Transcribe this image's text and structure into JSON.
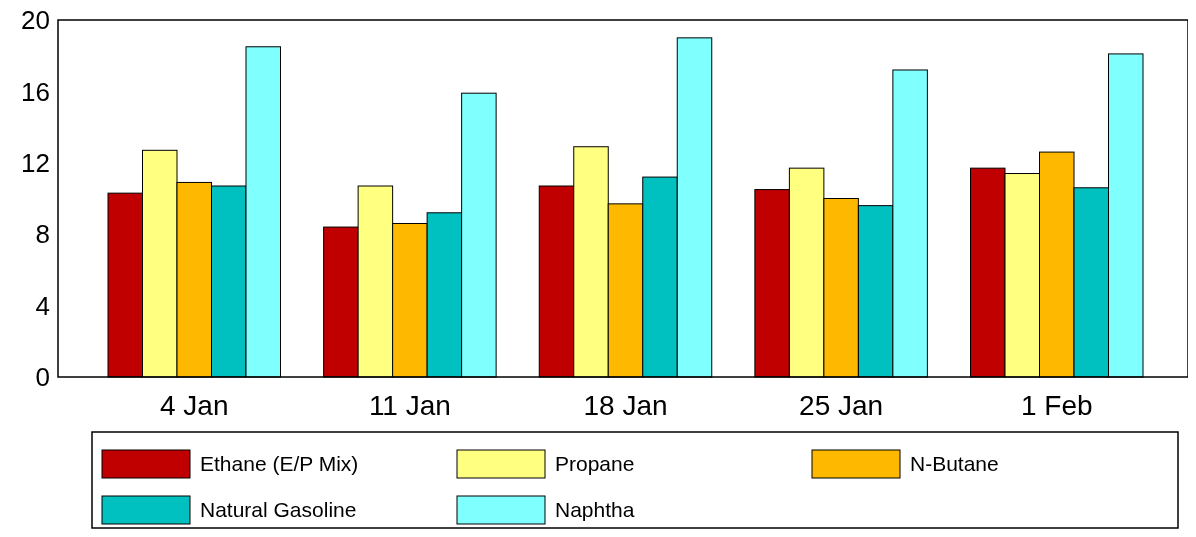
{
  "chart_data": {
    "type": "bar",
    "categories": [
      "4 Jan",
      "11 Jan",
      "18 Jan",
      "25 Jan",
      "1 Feb"
    ],
    "series": [
      {
        "name": "Ethane (E/P Mix)",
        "color": "#c00000",
        "values": [
          10.3,
          8.4,
          10.7,
          10.5,
          11.7
        ]
      },
      {
        "name": "Propane",
        "color": "#ffff80",
        "values": [
          12.7,
          10.7,
          12.9,
          11.7,
          11.4
        ]
      },
      {
        "name": "N-Butane",
        "color": "#ffb800",
        "values": [
          10.9,
          8.6,
          9.7,
          10.0,
          12.6
        ]
      },
      {
        "name": "Natural Gasoline",
        "color": "#00c0c0",
        "values": [
          10.7,
          9.2,
          11.2,
          9.6,
          10.6
        ]
      },
      {
        "name": "Naphtha",
        "color": "#80ffff",
        "values": [
          18.5,
          15.9,
          19.0,
          17.2,
          18.1
        ]
      }
    ],
    "ylim": [
      0,
      20
    ],
    "yticks": [
      0,
      4,
      8,
      12,
      16,
      20
    ],
    "grid": false,
    "legend": "bottom"
  }
}
